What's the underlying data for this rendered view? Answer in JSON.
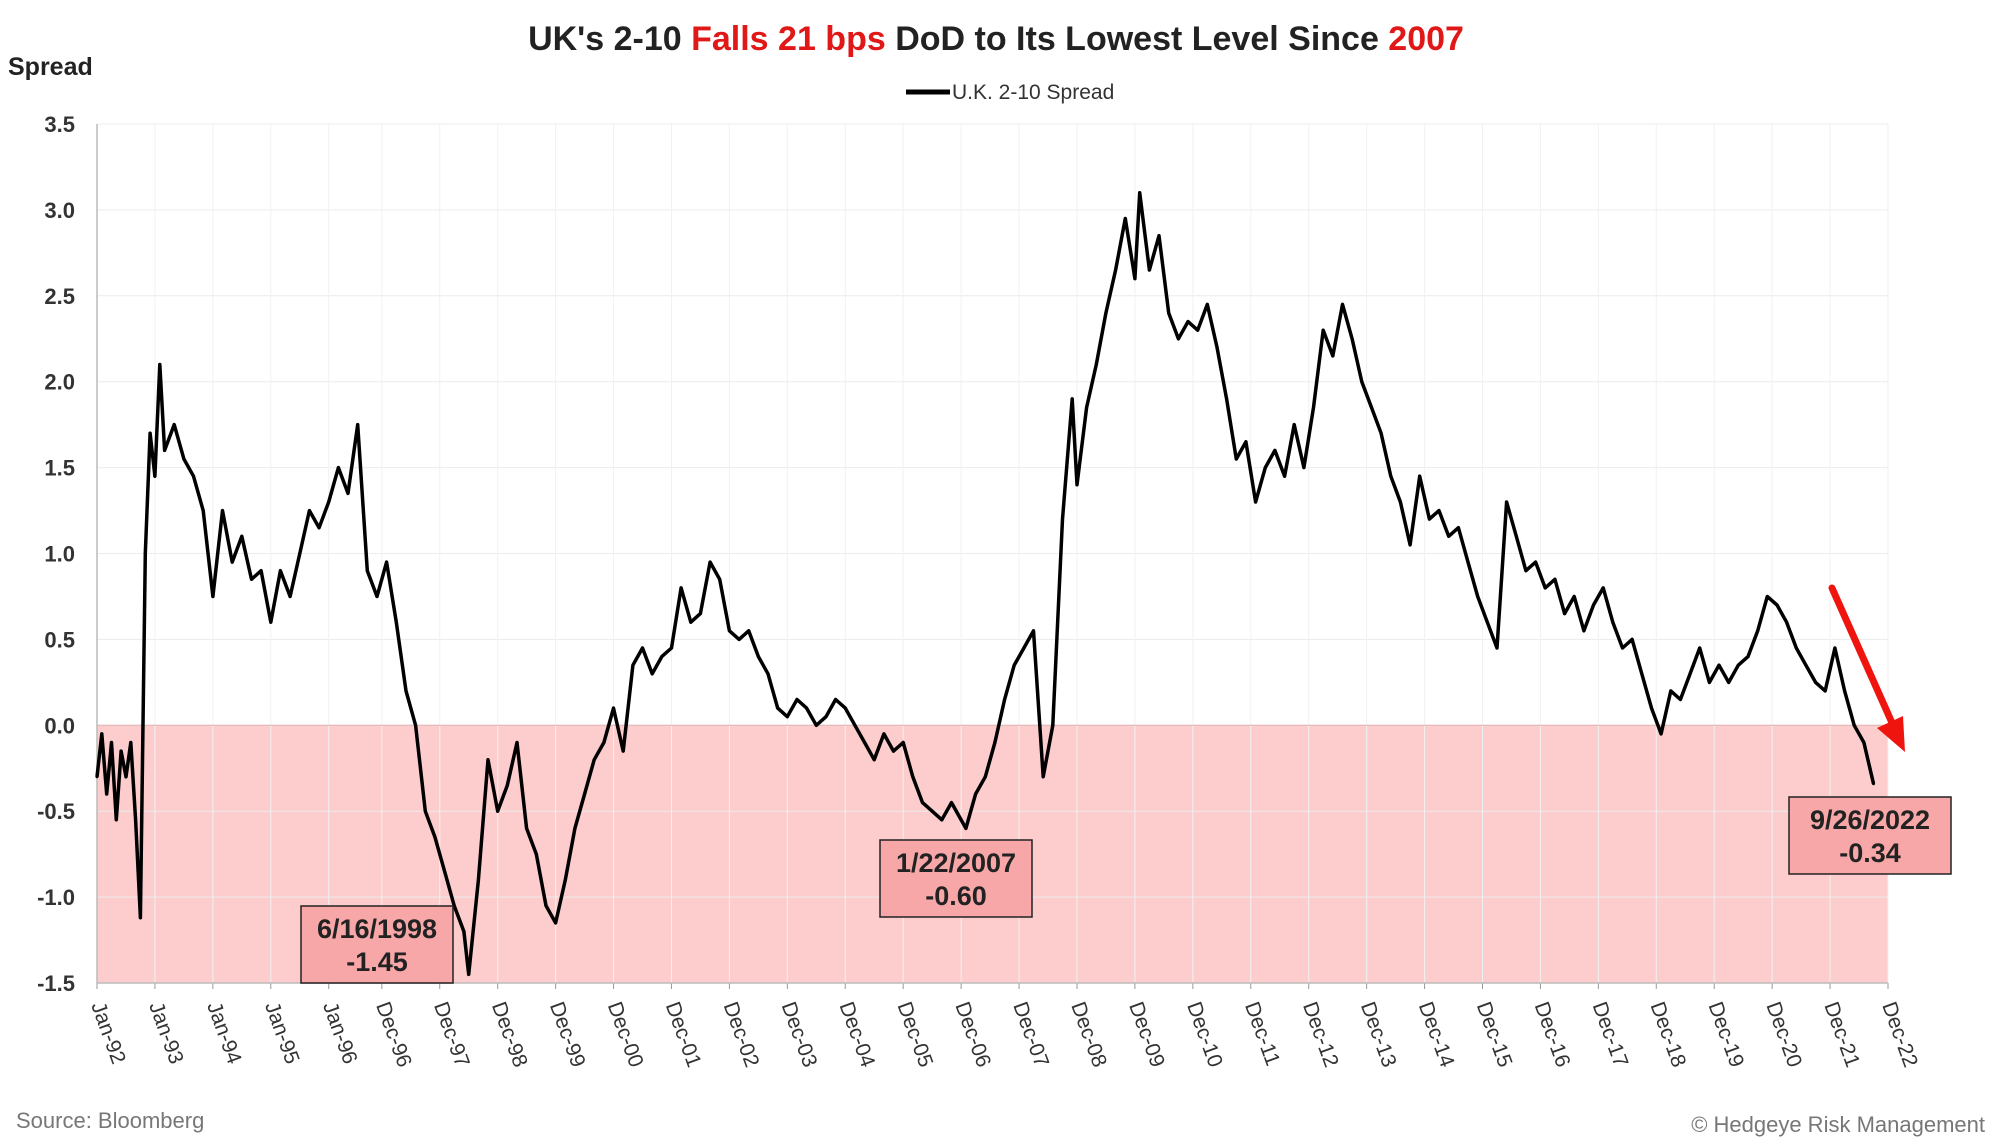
{
  "title": {
    "part1": "UK's 2-10 ",
    "part2": "Falls 21 bps",
    "part3": " DoD to Its Lowest Level Since ",
    "part4": "2007"
  },
  "source": "Source: Bloomberg",
  "copyright": "© Hedgeye Risk Management",
  "colors": {
    "line": "#000000",
    "negative_region": "#fdcdcd",
    "annotation_box": "#f7a7a7",
    "highlight": "#e01818",
    "arrow": "#f0140f"
  },
  "chart_data": {
    "type": "line",
    "ylabel": "Spread",
    "xlabel": "",
    "ylim": [
      -1.5,
      3.5
    ],
    "y_ticks": [
      "3.5",
      "3.0",
      "2.5",
      "2.0",
      "1.5",
      "1.0",
      "0.5",
      "0.0",
      "-0.5",
      "-1.0",
      "-1.5"
    ],
    "x_range": [
      "1992-01",
      "2022-12"
    ],
    "x_ticks": [
      "Jan-92",
      "Jan-93",
      "Jan-94",
      "Jan-95",
      "Jan-96",
      "Dec-96",
      "Dec-97",
      "Dec-98",
      "Dec-99",
      "Dec-00",
      "Dec-01",
      "Dec-02",
      "Dec-03",
      "Dec-04",
      "Dec-05",
      "Dec-06",
      "Dec-07",
      "Dec-08",
      "Dec-09",
      "Dec-10",
      "Dec-11",
      "Dec-12",
      "Dec-13",
      "Dec-14",
      "Dec-15",
      "Dec-16",
      "Dec-17",
      "Dec-18",
      "Dec-19",
      "Dec-20",
      "Dec-21",
      "Dec-22"
    ],
    "grid": true,
    "legend": "top-center",
    "negative_shading": true,
    "series": [
      {
        "name": "U.K. 2-10 Spread",
        "points": [
          [
            "1992-01",
            -0.3
          ],
          [
            "1992-02",
            -0.05
          ],
          [
            "1992-03",
            -0.4
          ],
          [
            "1992-04",
            -0.1
          ],
          [
            "1992-05",
            -0.55
          ],
          [
            "1992-06",
            -0.15
          ],
          [
            "1992-07",
            -0.3
          ],
          [
            "1992-08",
            -0.1
          ],
          [
            "1992-09",
            -0.55
          ],
          [
            "1992-10",
            -1.12
          ],
          [
            "1992-11",
            1.0
          ],
          [
            "1992-12",
            1.7
          ],
          [
            "1993-01",
            1.45
          ],
          [
            "1993-02",
            2.1
          ],
          [
            "1993-03",
            1.6
          ],
          [
            "1993-05",
            1.75
          ],
          [
            "1993-07",
            1.55
          ],
          [
            "1993-09",
            1.45
          ],
          [
            "1993-11",
            1.25
          ],
          [
            "1994-01",
            0.75
          ],
          [
            "1994-03",
            1.25
          ],
          [
            "1994-05",
            0.95
          ],
          [
            "1994-07",
            1.1
          ],
          [
            "1994-09",
            0.85
          ],
          [
            "1994-11",
            0.9
          ],
          [
            "1995-01",
            0.6
          ],
          [
            "1995-03",
            0.9
          ],
          [
            "1995-05",
            0.75
          ],
          [
            "1995-07",
            1.0
          ],
          [
            "1995-09",
            1.25
          ],
          [
            "1995-11",
            1.15
          ],
          [
            "1996-01",
            1.3
          ],
          [
            "1996-03",
            1.5
          ],
          [
            "1996-05",
            1.35
          ],
          [
            "1996-07",
            1.75
          ],
          [
            "1996-09",
            0.9
          ],
          [
            "1996-11",
            0.75
          ],
          [
            "1997-01",
            0.95
          ],
          [
            "1997-03",
            0.6
          ],
          [
            "1997-05",
            0.2
          ],
          [
            "1997-07",
            0.0
          ],
          [
            "1997-09",
            -0.5
          ],
          [
            "1997-11",
            -0.65
          ],
          [
            "1998-01",
            -0.85
          ],
          [
            "1998-03",
            -1.05
          ],
          [
            "1998-05",
            -1.2
          ],
          [
            "1998-06",
            -1.45
          ],
          [
            "1998-08",
            -0.9
          ],
          [
            "1998-10",
            -0.2
          ],
          [
            "1998-12",
            -0.5
          ],
          [
            "1999-02",
            -0.35
          ],
          [
            "1999-04",
            -0.1
          ],
          [
            "1999-06",
            -0.6
          ],
          [
            "1999-08",
            -0.75
          ],
          [
            "1999-10",
            -1.05
          ],
          [
            "1999-12",
            -1.15
          ],
          [
            "2000-02",
            -0.9
          ],
          [
            "2000-04",
            -0.6
          ],
          [
            "2000-06",
            -0.4
          ],
          [
            "2000-08",
            -0.2
          ],
          [
            "2000-10",
            -0.1
          ],
          [
            "2000-12",
            0.1
          ],
          [
            "2001-02",
            -0.15
          ],
          [
            "2001-04",
            0.35
          ],
          [
            "2001-06",
            0.45
          ],
          [
            "2001-08",
            0.3
          ],
          [
            "2001-10",
            0.4
          ],
          [
            "2001-12",
            0.45
          ],
          [
            "2002-02",
            0.8
          ],
          [
            "2002-04",
            0.6
          ],
          [
            "2002-06",
            0.65
          ],
          [
            "2002-08",
            0.95
          ],
          [
            "2002-10",
            0.85
          ],
          [
            "2002-12",
            0.55
          ],
          [
            "2003-02",
            0.5
          ],
          [
            "2003-04",
            0.55
          ],
          [
            "2003-06",
            0.4
          ],
          [
            "2003-08",
            0.3
          ],
          [
            "2003-10",
            0.1
          ],
          [
            "2003-12",
            0.05
          ],
          [
            "2004-02",
            0.15
          ],
          [
            "2004-04",
            0.1
          ],
          [
            "2004-06",
            0.0
          ],
          [
            "2004-08",
            0.05
          ],
          [
            "2004-10",
            0.15
          ],
          [
            "2004-12",
            0.1
          ],
          [
            "2005-02",
            0.0
          ],
          [
            "2005-04",
            -0.1
          ],
          [
            "2005-06",
            -0.2
          ],
          [
            "2005-08",
            -0.05
          ],
          [
            "2005-10",
            -0.15
          ],
          [
            "2005-12",
            -0.1
          ],
          [
            "2006-02",
            -0.3
          ],
          [
            "2006-04",
            -0.45
          ],
          [
            "2006-06",
            -0.5
          ],
          [
            "2006-08",
            -0.55
          ],
          [
            "2006-10",
            -0.45
          ],
          [
            "2007-01",
            -0.6
          ],
          [
            "2007-03",
            -0.4
          ],
          [
            "2007-05",
            -0.3
          ],
          [
            "2007-07",
            -0.1
          ],
          [
            "2007-09",
            0.15
          ],
          [
            "2007-11",
            0.35
          ],
          [
            "2008-01",
            0.45
          ],
          [
            "2008-03",
            0.55
          ],
          [
            "2008-05",
            -0.3
          ],
          [
            "2008-07",
            0.0
          ],
          [
            "2008-09",
            1.2
          ],
          [
            "2008-11",
            1.9
          ],
          [
            "2008-12",
            1.4
          ],
          [
            "2009-02",
            1.85
          ],
          [
            "2009-04",
            2.1
          ],
          [
            "2009-06",
            2.4
          ],
          [
            "2009-08",
            2.65
          ],
          [
            "2009-10",
            2.95
          ],
          [
            "2009-12",
            2.6
          ],
          [
            "2010-01",
            3.1
          ],
          [
            "2010-03",
            2.65
          ],
          [
            "2010-05",
            2.85
          ],
          [
            "2010-07",
            2.4
          ],
          [
            "2010-09",
            2.25
          ],
          [
            "2010-11",
            2.35
          ],
          [
            "2011-01",
            2.3
          ],
          [
            "2011-03",
            2.45
          ],
          [
            "2011-05",
            2.2
          ],
          [
            "2011-07",
            1.9
          ],
          [
            "2011-09",
            1.55
          ],
          [
            "2011-11",
            1.65
          ],
          [
            "2012-01",
            1.3
          ],
          [
            "2012-03",
            1.5
          ],
          [
            "2012-05",
            1.6
          ],
          [
            "2012-07",
            1.45
          ],
          [
            "2012-09",
            1.75
          ],
          [
            "2012-11",
            1.5
          ],
          [
            "2013-01",
            1.85
          ],
          [
            "2013-03",
            2.3
          ],
          [
            "2013-05",
            2.15
          ],
          [
            "2013-07",
            2.45
          ],
          [
            "2013-09",
            2.25
          ],
          [
            "2013-11",
            2.0
          ],
          [
            "2014-01",
            1.85
          ],
          [
            "2014-03",
            1.7
          ],
          [
            "2014-05",
            1.45
          ],
          [
            "2014-07",
            1.3
          ],
          [
            "2014-09",
            1.05
          ],
          [
            "2014-11",
            1.45
          ],
          [
            "2015-01",
            1.2
          ],
          [
            "2015-03",
            1.25
          ],
          [
            "2015-05",
            1.1
          ],
          [
            "2015-07",
            1.15
          ],
          [
            "2015-09",
            0.95
          ],
          [
            "2015-11",
            0.75
          ],
          [
            "2016-01",
            0.6
          ],
          [
            "2016-03",
            0.45
          ],
          [
            "2016-05",
            1.3
          ],
          [
            "2016-07",
            1.1
          ],
          [
            "2016-09",
            0.9
          ],
          [
            "2016-11",
            0.95
          ],
          [
            "2017-01",
            0.8
          ],
          [
            "2017-03",
            0.85
          ],
          [
            "2017-05",
            0.65
          ],
          [
            "2017-07",
            0.75
          ],
          [
            "2017-09",
            0.55
          ],
          [
            "2017-11",
            0.7
          ],
          [
            "2018-01",
            0.8
          ],
          [
            "2018-03",
            0.6
          ],
          [
            "2018-05",
            0.45
          ],
          [
            "2018-07",
            0.5
          ],
          [
            "2018-09",
            0.3
          ],
          [
            "2018-11",
            0.1
          ],
          [
            "2019-01",
            -0.05
          ],
          [
            "2019-03",
            0.2
          ],
          [
            "2019-05",
            0.15
          ],
          [
            "2019-07",
            0.3
          ],
          [
            "2019-09",
            0.45
          ],
          [
            "2019-11",
            0.25
          ],
          [
            "2020-01",
            0.35
          ],
          [
            "2020-03",
            0.25
          ],
          [
            "2020-05",
            0.35
          ],
          [
            "2020-07",
            0.4
          ],
          [
            "2020-09",
            0.55
          ],
          [
            "2020-11",
            0.75
          ],
          [
            "2021-01",
            0.7
          ],
          [
            "2021-03",
            0.6
          ],
          [
            "2021-05",
            0.45
          ],
          [
            "2021-07",
            0.35
          ],
          [
            "2021-09",
            0.25
          ],
          [
            "2021-11",
            0.2
          ],
          [
            "2022-01",
            0.45
          ],
          [
            "2022-03",
            0.2
          ],
          [
            "2022-05",
            0.0
          ],
          [
            "2022-07",
            -0.1
          ],
          [
            "2022-09",
            -0.34
          ]
        ]
      }
    ],
    "annotations": [
      {
        "date": "6/16/1998",
        "value": "-1.45"
      },
      {
        "date": "1/22/2007",
        "value": "-0.60"
      },
      {
        "date": "9/26/2022",
        "value": "-0.34"
      }
    ]
  }
}
